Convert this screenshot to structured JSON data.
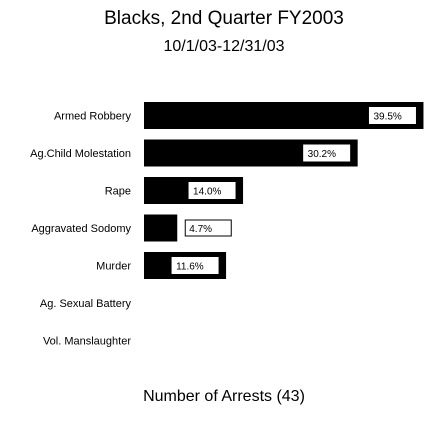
{
  "chart_data": {
    "type": "bar",
    "orientation": "horizontal",
    "title": "Blacks, 2nd Quarter FY2003",
    "subtitle": "10/1/03-12/31/03",
    "xlabel": "Number of Arrests (43)",
    "categories": [
      "Armed Robbery",
      "Ag.Child Molestation",
      "Rape",
      "Aggravated Sodomy",
      "Murder",
      "Ag. Sexual Battery",
      "Vol. Manslaughter"
    ],
    "values": [
      39.5,
      30.2,
      14.0,
      4.7,
      11.6,
      0,
      0
    ],
    "value_labels": [
      "39.5%",
      "30.2%",
      "14.0%",
      "4.7%",
      "11.6%",
      "",
      ""
    ],
    "xlim": [
      0,
      40
    ],
    "grid": false,
    "bar_color": "#000000"
  }
}
